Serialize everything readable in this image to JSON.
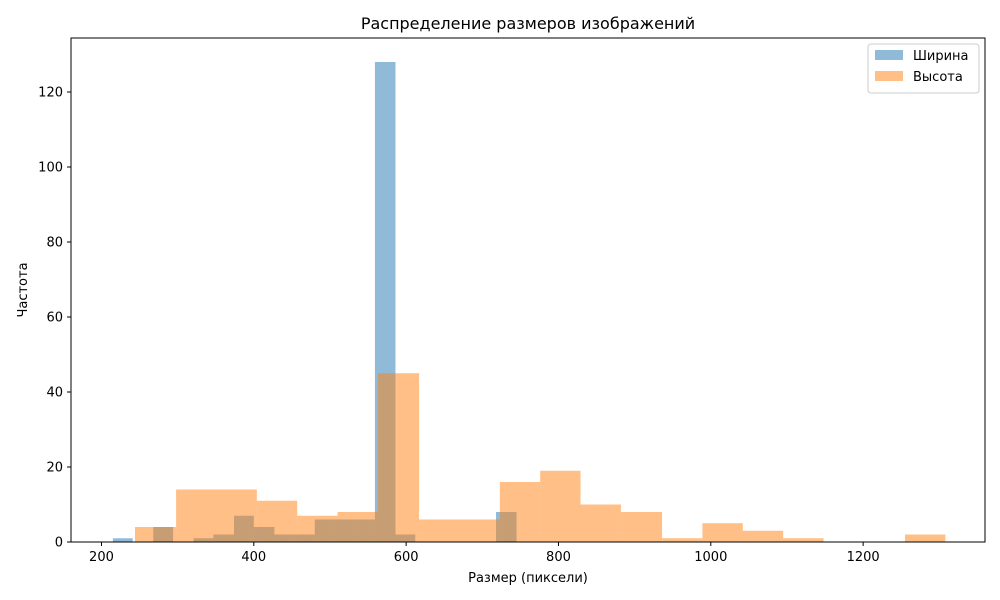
{
  "chart_data": {
    "type": "histogram",
    "title": "Распределение размеров изображений",
    "xlabel": "Размер (пиксели)",
    "ylabel": "Частота",
    "xlim": [
      160,
      1360
    ],
    "ylim": [
      0,
      134.4
    ],
    "xticks": [
      200,
      400,
      600,
      800,
      1000,
      1200
    ],
    "yticks": [
      0,
      20,
      40,
      60,
      80,
      100,
      120
    ],
    "legend_position": "top-right",
    "grid": false,
    "series": [
      {
        "name": "Ширина",
        "color": "#1f77b4",
        "opacity": 0.5,
        "bins": [
          {
            "x0": 215,
            "x1": 241,
            "count": 1
          },
          {
            "x0": 241,
            "x1": 268,
            "count": 0
          },
          {
            "x0": 268,
            "x1": 294,
            "count": 4
          },
          {
            "x0": 294,
            "x1": 321,
            "count": 0
          },
          {
            "x0": 321,
            "x1": 347,
            "count": 1
          },
          {
            "x0": 347,
            "x1": 374,
            "count": 2
          },
          {
            "x0": 374,
            "x1": 400,
            "count": 7
          },
          {
            "x0": 400,
            "x1": 427,
            "count": 4
          },
          {
            "x0": 427,
            "x1": 453,
            "count": 2
          },
          {
            "x0": 453,
            "x1": 480,
            "count": 2
          },
          {
            "x0": 480,
            "x1": 506,
            "count": 6
          },
          {
            "x0": 506,
            "x1": 533,
            "count": 6
          },
          {
            "x0": 533,
            "x1": 559,
            "count": 6
          },
          {
            "x0": 559,
            "x1": 586,
            "count": 128
          },
          {
            "x0": 586,
            "x1": 612,
            "count": 2
          },
          {
            "x0": 612,
            "x1": 639,
            "count": 0
          },
          {
            "x0": 639,
            "x1": 665,
            "count": 0
          },
          {
            "x0": 665,
            "x1": 692,
            "count": 0
          },
          {
            "x0": 692,
            "x1": 718,
            "count": 0
          },
          {
            "x0": 718,
            "x1": 745,
            "count": 8
          }
        ]
      },
      {
        "name": "Высота",
        "color": "#ff7f0e",
        "opacity": 0.5,
        "bins": [
          {
            "x0": 244,
            "x1": 298,
            "count": 4
          },
          {
            "x0": 298,
            "x1": 351,
            "count": 14
          },
          {
            "x0": 351,
            "x1": 404,
            "count": 14
          },
          {
            "x0": 404,
            "x1": 457,
            "count": 11
          },
          {
            "x0": 457,
            "x1": 510,
            "count": 7
          },
          {
            "x0": 510,
            "x1": 563,
            "count": 8
          },
          {
            "x0": 563,
            "x1": 617,
            "count": 45
          },
          {
            "x0": 617,
            "x1": 670,
            "count": 6
          },
          {
            "x0": 670,
            "x1": 723,
            "count": 6
          },
          {
            "x0": 723,
            "x1": 776,
            "count": 16
          },
          {
            "x0": 776,
            "x1": 829,
            "count": 19
          },
          {
            "x0": 829,
            "x1": 882,
            "count": 10
          },
          {
            "x0": 882,
            "x1": 936,
            "count": 8
          },
          {
            "x0": 936,
            "x1": 989,
            "count": 1
          },
          {
            "x0": 989,
            "x1": 1042,
            "count": 5
          },
          {
            "x0": 1042,
            "x1": 1095,
            "count": 3
          },
          {
            "x0": 1095,
            "x1": 1148,
            "count": 1
          },
          {
            "x0": 1148,
            "x1": 1201,
            "count": 0
          },
          {
            "x0": 1201,
            "x1": 1255,
            "count": 0
          },
          {
            "x0": 1255,
            "x1": 1308,
            "count": 2
          }
        ]
      }
    ]
  }
}
